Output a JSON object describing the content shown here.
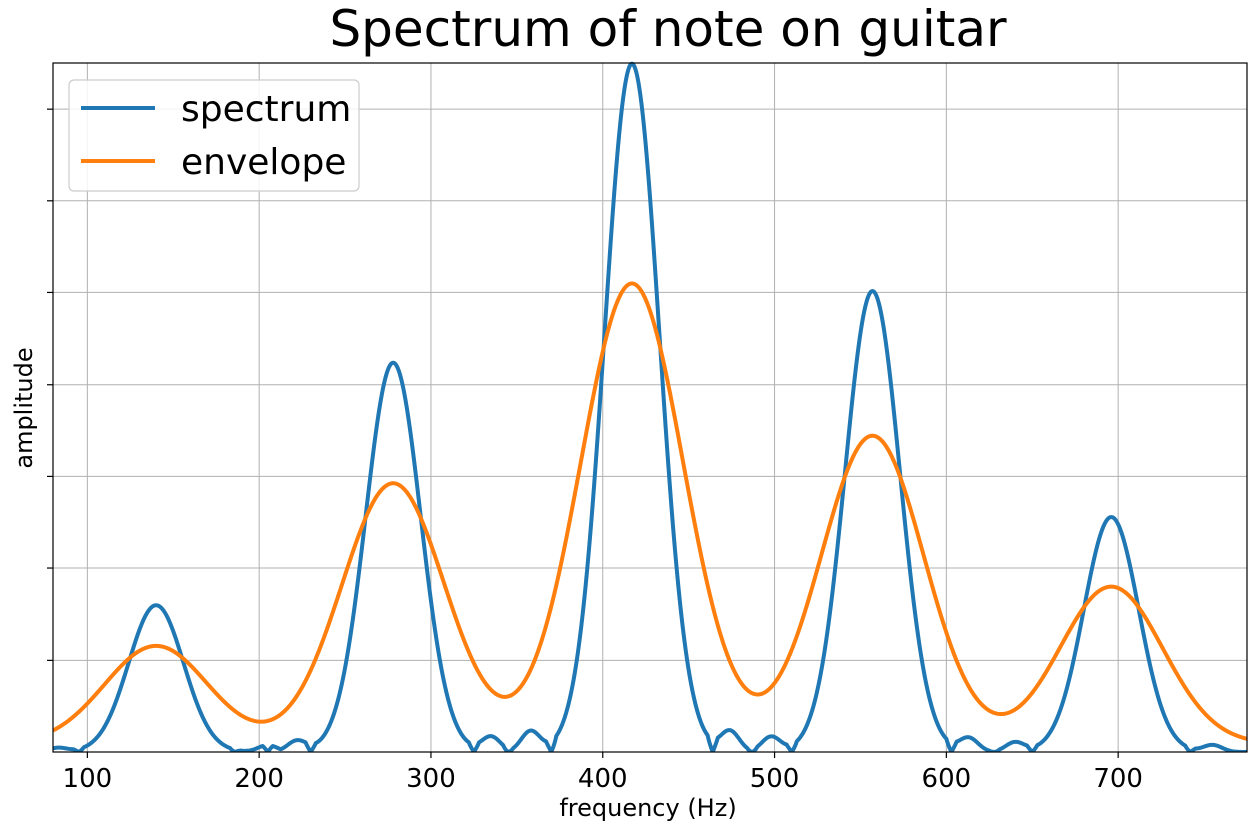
{
  "chart_data": {
    "type": "line",
    "title": "Spectrum of note on guitar",
    "xlabel": "frequency (Hz)",
    "ylabel": "amplitude",
    "xlim": [
      80,
      775
    ],
    "ylim": [
      0,
      1.0
    ],
    "x_ticks": [
      100,
      200,
      300,
      400,
      500,
      600,
      700
    ],
    "x_tick_labels": [
      "100",
      "200",
      "300",
      "400",
      "500",
      "600",
      "700"
    ],
    "y_ticks": [
      0.133,
      0.267,
      0.4,
      0.533,
      0.667,
      0.8,
      0.933
    ],
    "y_tick_labels": [],
    "grid": true,
    "legend": {
      "placement": "top-left",
      "entries": [
        "spectrum",
        "envelope"
      ]
    },
    "series": [
      {
        "name": "spectrum",
        "color": "#1f77b4",
        "peaks": [
          {
            "x": 140,
            "y": 0.213
          },
          {
            "x": 278,
            "y": 0.565
          },
          {
            "x": 417,
            "y": 0.999
          },
          {
            "x": 557,
            "y": 0.669
          },
          {
            "x": 696,
            "y": 0.341
          }
        ],
        "minima": [
          95,
          186,
          205,
          230,
          325,
          345,
          370,
          464,
          487,
          510,
          603,
          628,
          650,
          742
        ],
        "sidelobes": [
          {
            "x": 83,
            "y": 0.006
          },
          {
            "x": 205,
            "y": 0.01
          },
          {
            "x": 222,
            "y": 0.016
          },
          {
            "x": 335,
            "y": 0.022
          },
          {
            "x": 358,
            "y": 0.03
          },
          {
            "x": 474,
            "y": 0.03
          },
          {
            "x": 498,
            "y": 0.022
          },
          {
            "x": 613,
            "y": 0.02
          },
          {
            "x": 640,
            "y": 0.014
          },
          {
            "x": 755,
            "y": 0.01
          }
        ]
      },
      {
        "name": "envelope",
        "color": "#ff7f0e",
        "peaks": [
          {
            "x": 140,
            "y": 0.142
          },
          {
            "x": 278,
            "y": 0.378
          },
          {
            "x": 417,
            "y": 0.668
          },
          {
            "x": 557,
            "y": 0.447
          },
          {
            "x": 696,
            "y": 0.228
          }
        ]
      }
    ]
  }
}
